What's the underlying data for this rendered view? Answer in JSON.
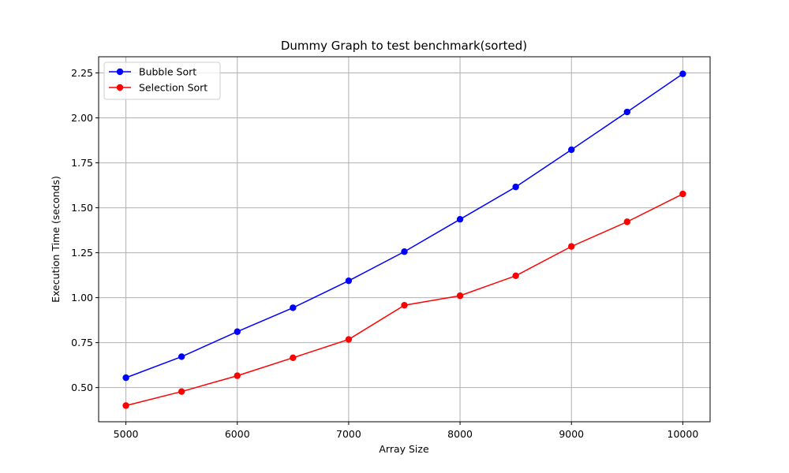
{
  "chart_data": {
    "type": "line",
    "title": "Dummy Graph to test benchmark(sorted)",
    "xlabel": "Array Size",
    "ylabel": "Execution Time (seconds)",
    "xlim": [
      4755,
      10245
    ],
    "ylim": [
      0.31,
      2.34
    ],
    "xticks": [
      5000,
      6000,
      7000,
      8000,
      9000,
      10000
    ],
    "yticks": [
      0.5,
      0.75,
      1.0,
      1.25,
      1.5,
      1.75,
      2.0,
      2.25
    ],
    "ytick_labels": [
      "0.50",
      "0.75",
      "1.00",
      "1.25",
      "1.50",
      "1.75",
      "2.00",
      "2.25"
    ],
    "grid": true,
    "legend_position": "upper-left",
    "x": [
      5000,
      5500,
      6000,
      6500,
      7000,
      7500,
      8000,
      8500,
      9000,
      9500,
      10000
    ],
    "series": [
      {
        "name": "Bubble Sort",
        "color": "#0000ff",
        "values": [
          0.555,
          0.672,
          0.811,
          0.944,
          1.094,
          1.256,
          1.436,
          1.616,
          1.823,
          2.033,
          2.245
        ]
      },
      {
        "name": "Selection Sort",
        "color": "#ff0000",
        "values": [
          0.4,
          0.478,
          0.566,
          0.666,
          0.768,
          0.958,
          1.011,
          1.122,
          1.285,
          1.422,
          1.577
        ]
      }
    ]
  }
}
